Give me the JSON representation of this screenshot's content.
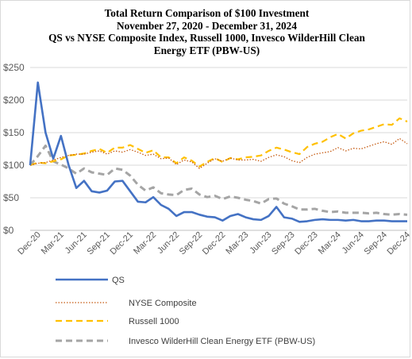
{
  "title_lines": [
    "Total Return Comparison of $100 Investment",
    "November 27, 2020 - December 31, 2024",
    "QS vs NYSE Composite Index, Russell 1000, Invesco WilderHill Clean",
    "Energy ETF (PBW-US)"
  ],
  "colors": {
    "qs": "#4472C4",
    "nyse": "#C55A11",
    "russell": "#FFC000",
    "pbw": "#A5A5A5",
    "gridline": "#d9d9d9",
    "axis": "#bfbfbf"
  },
  "chart_data": {
    "type": "line",
    "title": "Total Return Comparison of $100 Investment November 27, 2020 - December 31, 2024 QS vs NYSE Composite Index, Russell 1000, Invesco WilderHill Clean Energy ETF (PBW-US)",
    "xlabel": "",
    "ylabel": "",
    "ylim": [
      0,
      250
    ],
    "yticks": [
      "$0",
      "$50",
      "$100",
      "$150",
      "$200",
      "$250"
    ],
    "x_tick_labels": [
      "Dec-20",
      "Mar-21",
      "Jun-21",
      "Sep-21",
      "Dec-21",
      "Mar-22",
      "Jun-22",
      "Sep-22",
      "Dec-22",
      "Mar-23",
      "Jun-23",
      "Sep-23",
      "Dec-23",
      "Mar-24",
      "Jun-24",
      "Sep-24",
      "Dec-24"
    ],
    "grid": "horizontal",
    "legend_position": "bottom-left",
    "x": [
      "Nov-20",
      "Dec-20",
      "Jan-21",
      "Feb-21",
      "Mar-21",
      "Apr-21",
      "May-21",
      "Jun-21",
      "Jul-21",
      "Aug-21",
      "Sep-21",
      "Oct-21",
      "Nov-21",
      "Dec-21",
      "Jan-22",
      "Feb-22",
      "Mar-22",
      "Apr-22",
      "May-22",
      "Jun-22",
      "Jul-22",
      "Aug-22",
      "Sep-22",
      "Oct-22",
      "Nov-22",
      "Dec-22",
      "Jan-23",
      "Feb-23",
      "Mar-23",
      "Apr-23",
      "May-23",
      "Jun-23",
      "Jul-23",
      "Aug-23",
      "Sep-23",
      "Oct-23",
      "Nov-23",
      "Dec-23",
      "Jan-24",
      "Feb-24",
      "Mar-24",
      "Apr-24",
      "May-24",
      "Jun-24",
      "Jul-24",
      "Aug-24",
      "Sep-24",
      "Oct-24",
      "Nov-24",
      "Dec-24"
    ],
    "series": [
      {
        "name": "QS",
        "style": "solid",
        "values": [
          100,
          227,
          150,
          110,
          145,
          100,
          65,
          76,
          60,
          58,
          61,
          75,
          76,
          60,
          44,
          43,
          51,
          39,
          33,
          22,
          28,
          28,
          24,
          21,
          20,
          15,
          22,
          25,
          20,
          17,
          16,
          22,
          36,
          20,
          18,
          13,
          14,
          16,
          17,
          16,
          16,
          15,
          16,
          14,
          14,
          15,
          15,
          14,
          14,
          14
        ]
      },
      {
        "name": "NYSE Composite",
        "style": "dotted",
        "values": [
          100,
          103,
          104,
          108,
          112,
          115,
          117,
          117,
          120,
          122,
          117,
          122,
          120,
          124,
          120,
          115,
          117,
          110,
          111,
          101,
          108,
          105,
          95,
          103,
          110,
          106,
          111,
          108,
          108,
          109,
          106,
          112,
          116,
          113,
          107,
          104,
          112,
          117,
          119,
          121,
          127,
          122,
          126,
          125,
          129,
          133,
          136,
          132,
          141,
          133
        ]
      },
      {
        "name": "Russell 1000",
        "style": "dashed",
        "values": [
          100,
          104,
          103,
          106,
          109,
          115,
          116,
          118,
          122,
          125,
          119,
          127,
          127,
          131,
          125,
          119,
          123,
          112,
          112,
          103,
          112,
          107,
          98,
          105,
          111,
          105,
          111,
          109,
          112,
          113,
          115,
          122,
          127,
          124,
          120,
          117,
          128,
          133,
          136,
          143,
          148,
          141,
          149,
          153,
          155,
          159,
          163,
          162,
          172,
          167
        ]
      },
      {
        "name": "Invesco WilderHill Clean Energy ETF (PBW-US)",
        "style": "dashed",
        "values": [
          100,
          114,
          130,
          106,
          101,
          95,
          87,
          95,
          89,
          87,
          85,
          95,
          93,
          84,
          70,
          61,
          66,
          57,
          55,
          54,
          62,
          64,
          55,
          51,
          53,
          48,
          52,
          50,
          47,
          45,
          41,
          48,
          49,
          41,
          37,
          32,
          32,
          33,
          30,
          28,
          29,
          27,
          27,
          27,
          26,
          27,
          25,
          24,
          25,
          24
        ]
      }
    ]
  }
}
